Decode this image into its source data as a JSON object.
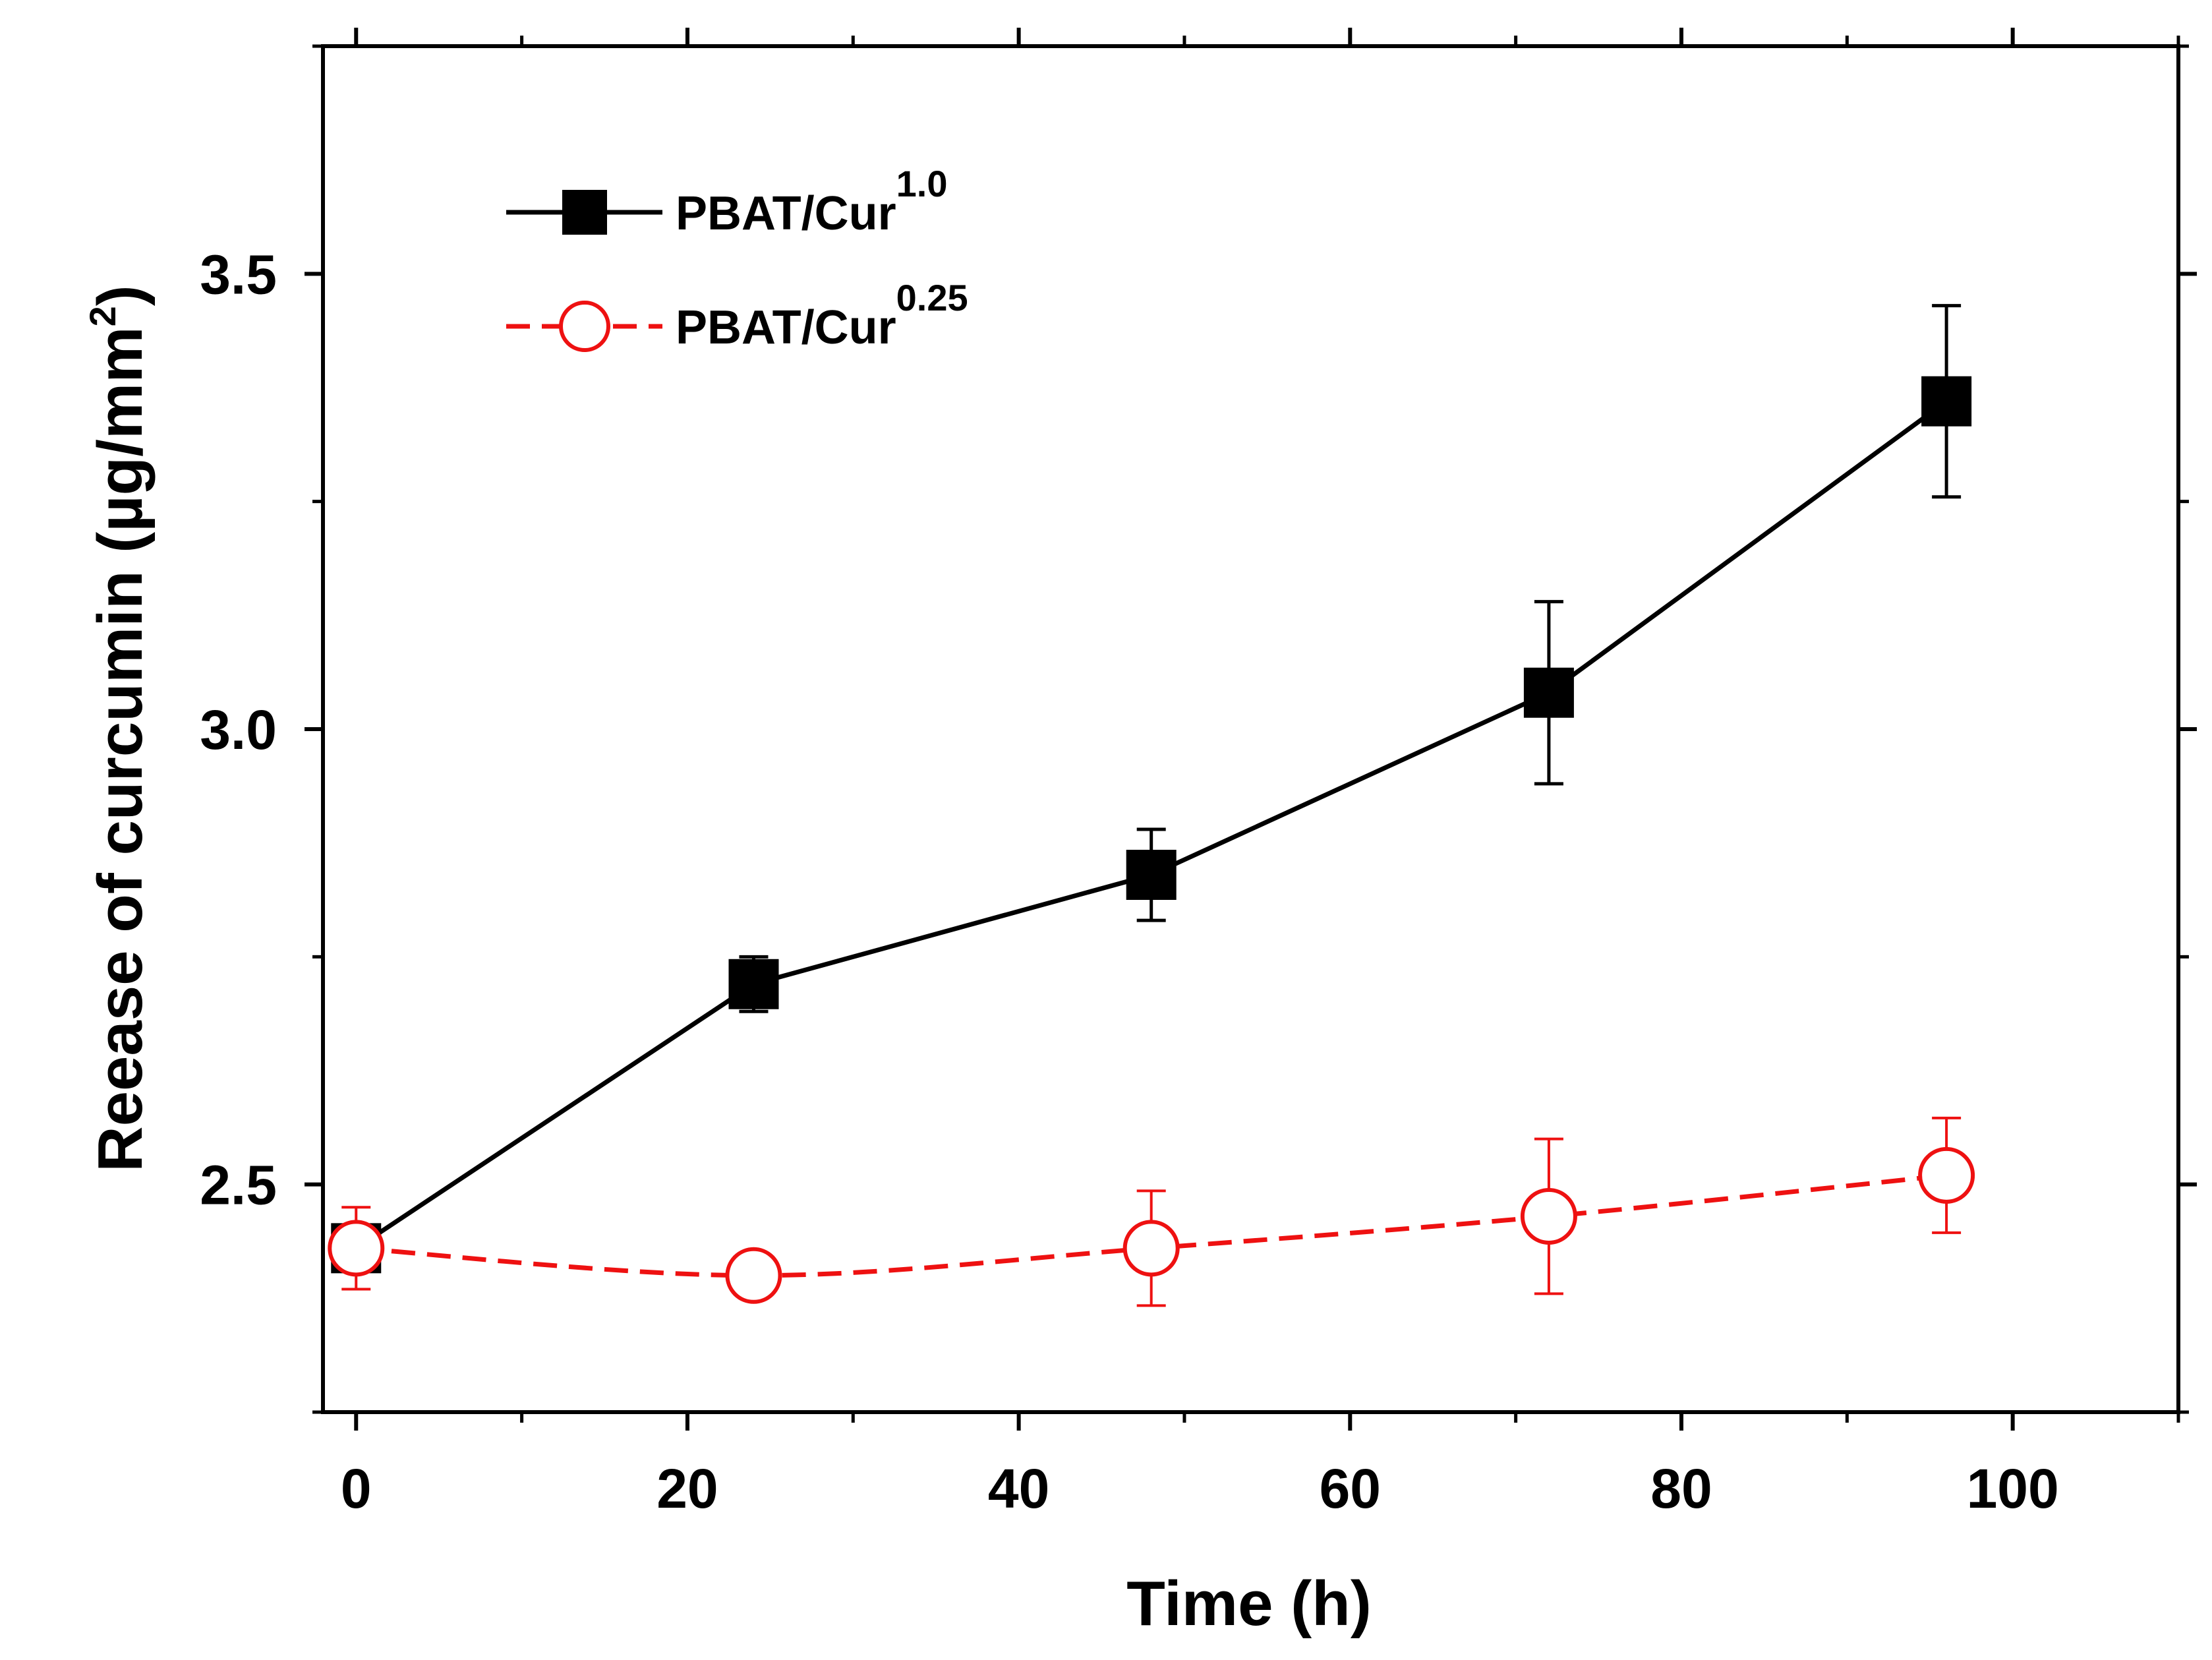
{
  "chart_data": {
    "type": "line",
    "title": "",
    "xlabel": "Time (h)",
    "ylabel_main": "Reease of curcumin (",
    "ylabel_unit": "µg/mm",
    "ylabel_sup": "2",
    "ylabel_close": ")",
    "xlim": [
      -2,
      110
    ],
    "ylim": [
      2.25,
      3.75
    ],
    "xticks": [
      0,
      20,
      40,
      60,
      80,
      100
    ],
    "xtick_labels": [
      "0",
      "20",
      "40",
      "60",
      "80",
      "100"
    ],
    "xminor": [
      10,
      30,
      50,
      70,
      90,
      110
    ],
    "yticks": [
      2.5,
      3.0,
      3.5
    ],
    "ytick_labels": [
      "2.5",
      "3.0",
      "3.5"
    ],
    "yminor": [
      2.25,
      2.75,
      3.25,
      3.75
    ],
    "legend_position": "top-left",
    "series": [
      {
        "name": "PBAT/Cur",
        "sup": "1.0",
        "color": "#000000",
        "marker": "square",
        "line": "solid",
        "x": [
          0,
          24,
          48,
          72,
          96
        ],
        "y": [
          2.43,
          2.72,
          2.84,
          3.04,
          3.36
        ],
        "err": [
          0.02,
          0.03,
          0.05,
          0.1,
          0.105
        ]
      },
      {
        "name": "PBAT/Cur",
        "sup": "0.25",
        "color": "#ee1111",
        "marker": "circle",
        "line": "dashed",
        "x": [
          0,
          24,
          48,
          72,
          96
        ],
        "y": [
          2.43,
          2.4,
          2.43,
          2.465,
          2.51
        ],
        "err": [
          0.045,
          0.02,
          0.063,
          0.085,
          0.063
        ]
      }
    ]
  }
}
